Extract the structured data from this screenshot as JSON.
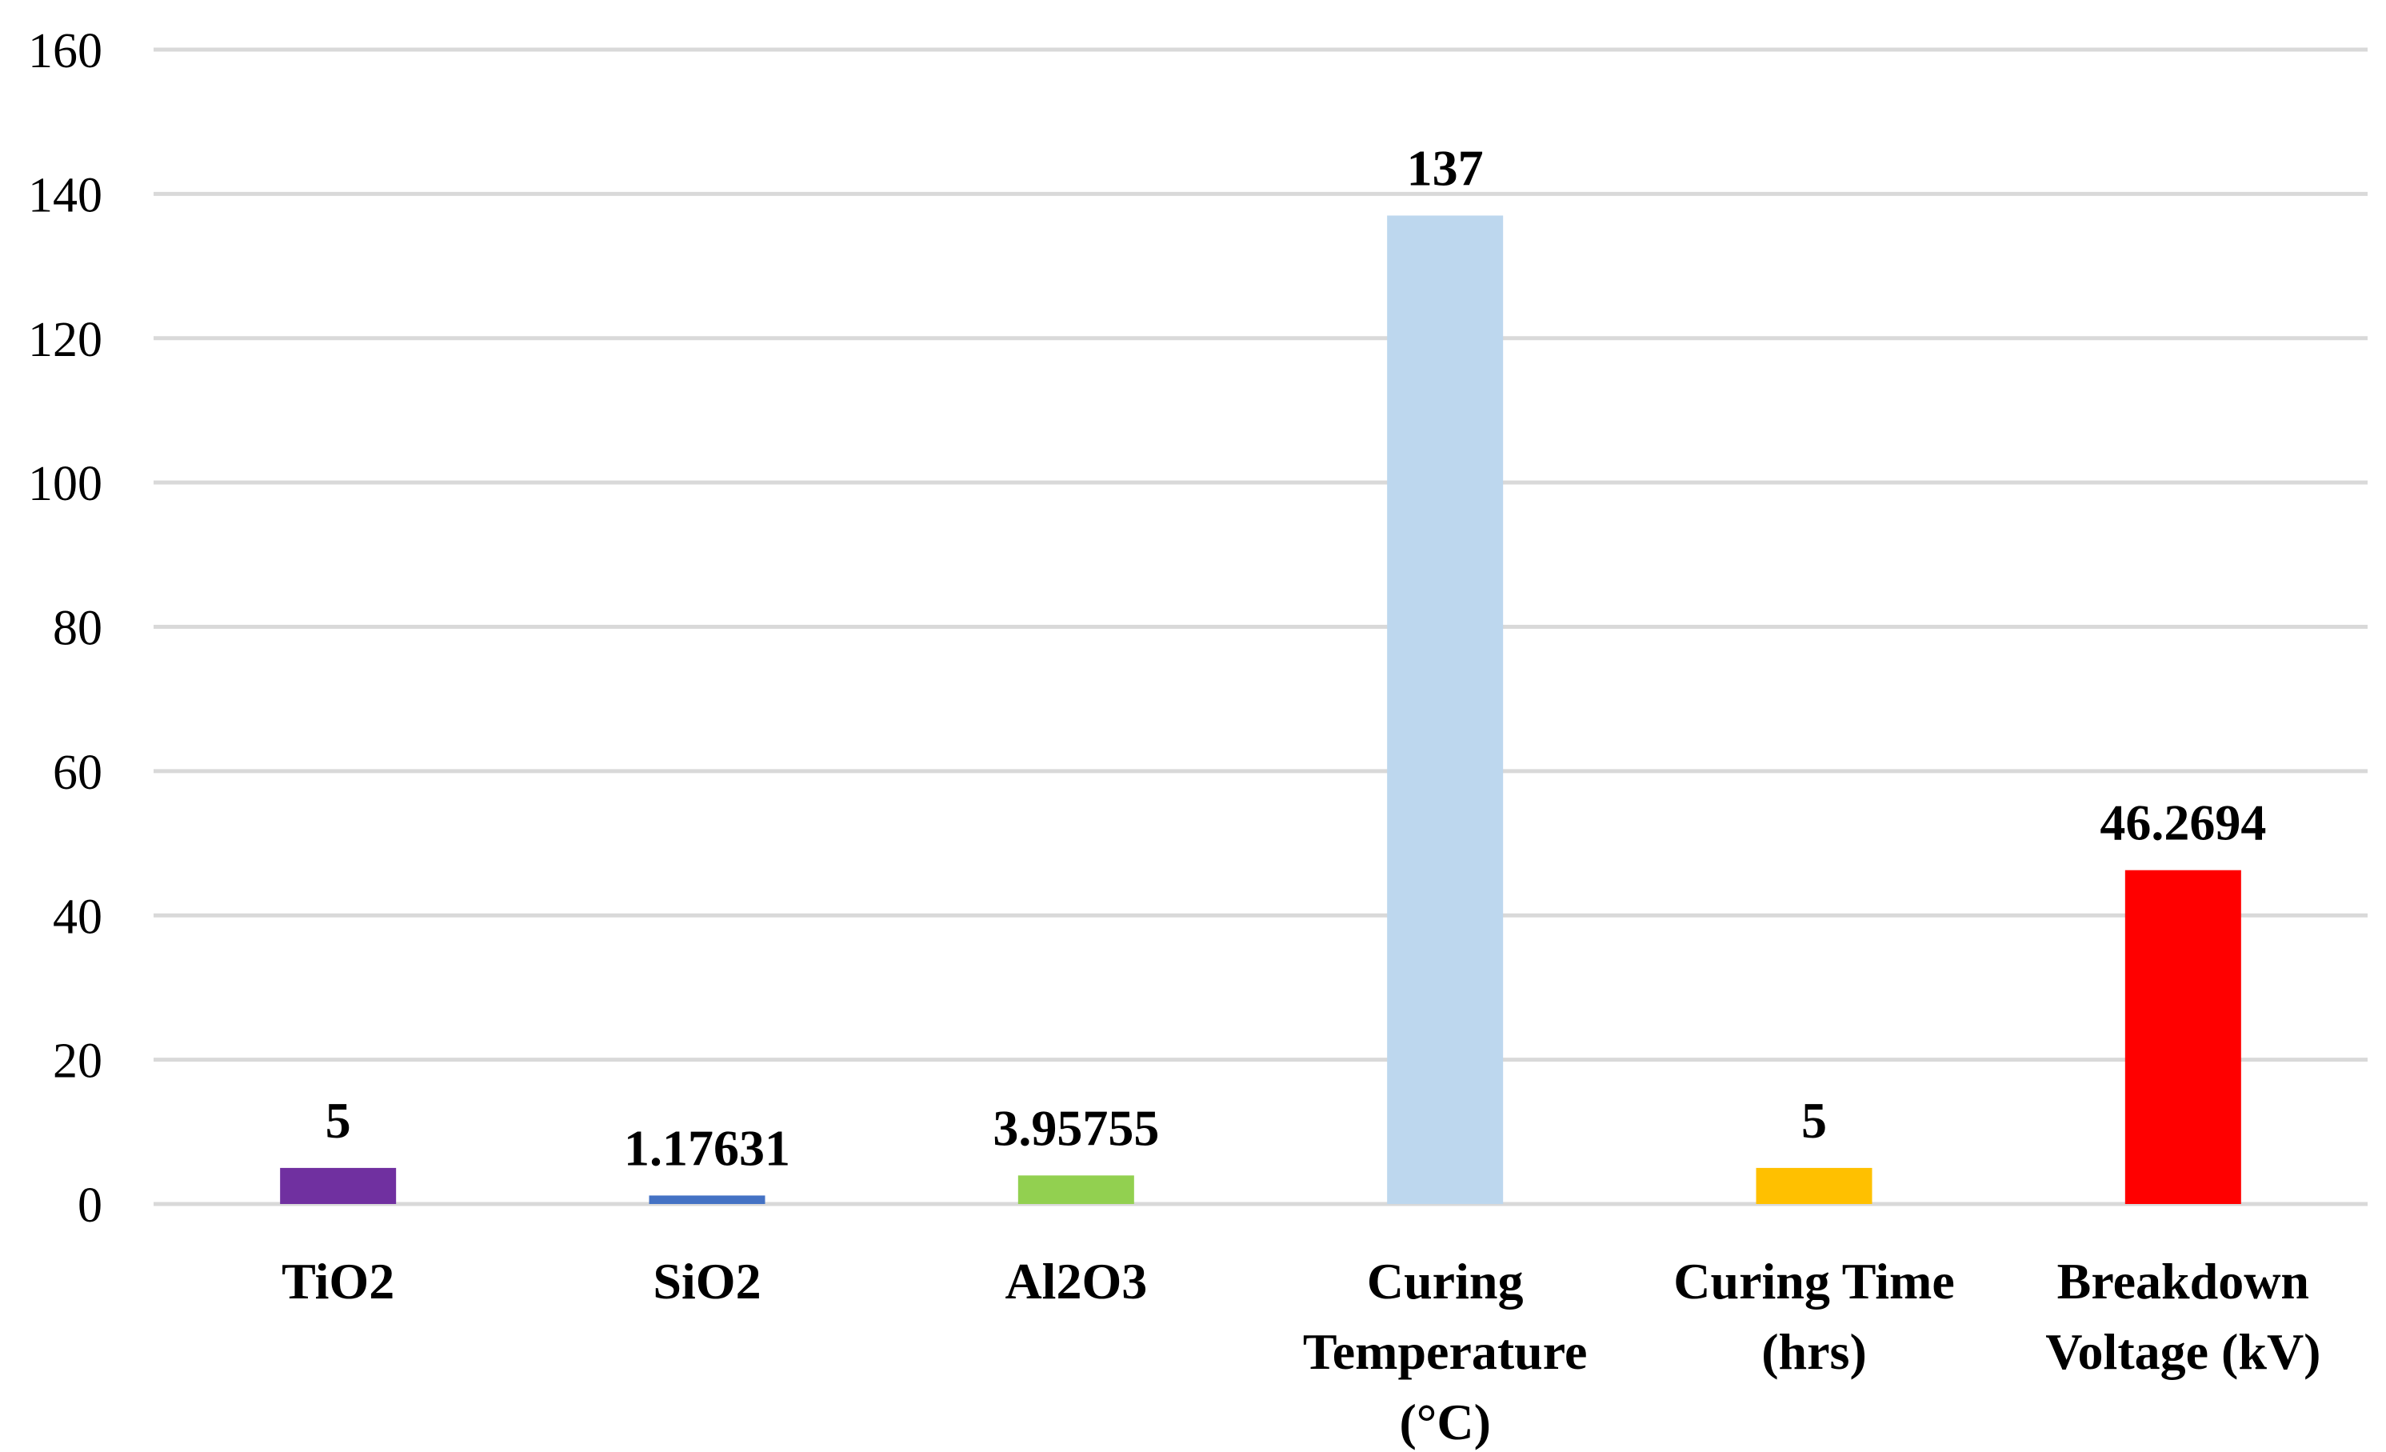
{
  "chart_data": {
    "type": "bar",
    "title": "",
    "xlabel": "",
    "ylabel": "",
    "ylim": [
      0,
      160
    ],
    "yticks": [
      0,
      20,
      40,
      60,
      80,
      100,
      120,
      140,
      160
    ],
    "grid": true,
    "legend": "none",
    "categories": [
      [
        "TiO2"
      ],
      [
        "SiO2"
      ],
      [
        "Al2O3"
      ],
      [
        "Curing",
        "Temperature",
        "(°C)"
      ],
      [
        "Curing Time",
        "(hrs)"
      ],
      [
        "Breakdown",
        "Voltage (kV)"
      ]
    ],
    "values": [
      5,
      1.17631,
      3.95755,
      137,
      5,
      46.2694
    ],
    "data_labels": [
      "5",
      "1.17631",
      "3.95755",
      "137",
      "5",
      "46.2694"
    ],
    "colors": [
      "#7030a0",
      "#4472c4",
      "#92d050",
      "#bdd7ee",
      "#ffc000",
      "#ff0000"
    ]
  }
}
